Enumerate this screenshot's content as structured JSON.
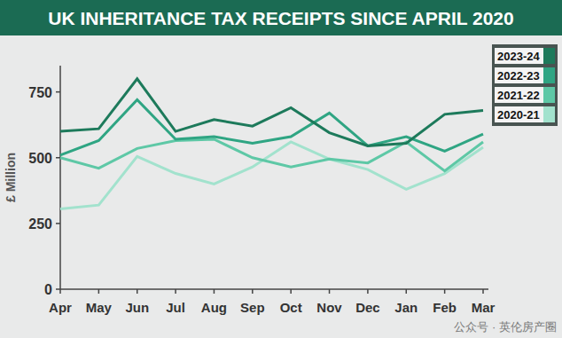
{
  "chart_data": {
    "type": "line",
    "title": "UK INHERITANCE TAX RECEIPTS SINCE APRIL 2020",
    "y_label": "£ Million",
    "annotations": [
      "公众号 · 英伦房产圈"
    ],
    "categories": [
      "Apr",
      "May",
      "Jun",
      "Jul",
      "Aug",
      "Sep",
      "Oct",
      "Nov",
      "Dec",
      "Jan",
      "Feb",
      "Mar"
    ],
    "series": [
      {
        "name": "2023-24",
        "color": "#1d7a5b",
        "values": [
          600,
          610,
          800,
          600,
          645,
          620,
          690,
          595,
          545,
          555,
          665,
          680
        ]
      },
      {
        "name": "2022-23",
        "color": "#2fa583",
        "values": [
          510,
          565,
          720,
          570,
          580,
          555,
          580,
          670,
          545,
          580,
          525,
          590
        ]
      },
      {
        "name": "2021-22",
        "color": "#5ec8a6",
        "values": [
          500,
          460,
          535,
          565,
          570,
          500,
          465,
          495,
          480,
          560,
          450,
          560
        ]
      },
      {
        "name": "2020-21",
        "color": "#a2e2cd",
        "values": [
          305,
          320,
          505,
          440,
          400,
          465,
          560,
          495,
          455,
          380,
          440,
          540
        ]
      }
    ],
    "ylim": [
      0,
      850
    ],
    "yticks": [
      0,
      250,
      500,
      750
    ],
    "grid": false,
    "legend": "top-right",
    "line_style": "solid"
  }
}
